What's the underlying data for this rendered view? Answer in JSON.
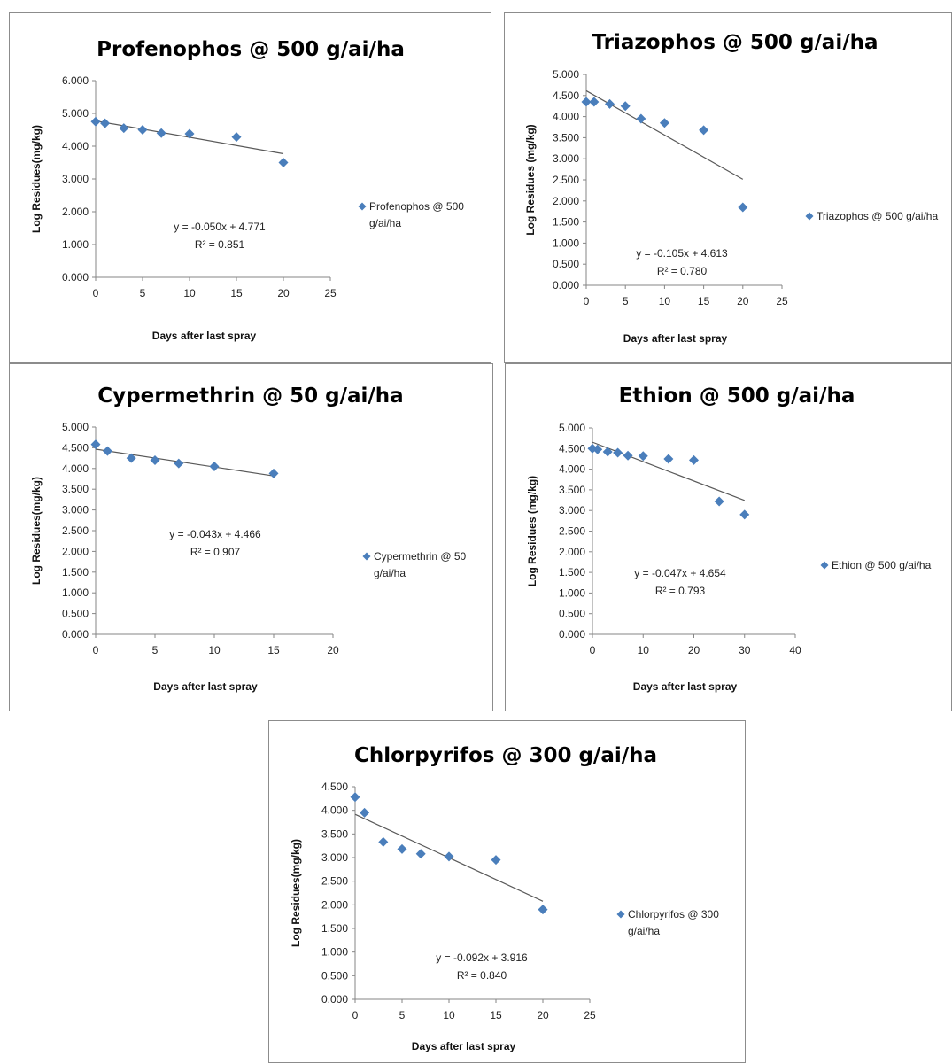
{
  "colors": {
    "marker": "#4a7ebb",
    "trend": "#595959",
    "axis": "#868686",
    "border": "#8c8c8c"
  },
  "chart_data": [
    {
      "type": "scatter",
      "title": "Profenophos @ 500 g/ai/ha",
      "xlabel": "Days after last spray",
      "ylabel": "Log Residues(mg/kg)",
      "xlim": [
        0,
        25
      ],
      "xticks": [
        "0",
        "5",
        "10",
        "15",
        "20",
        "25"
      ],
      "ylim": [
        0,
        6
      ],
      "yticks": [
        "0.000",
        "1.000",
        "2.000",
        "3.000",
        "4.000",
        "5.000",
        "6.000"
      ],
      "series": [
        {
          "name": "Profenophos @ 500 g/ai/ha",
          "legend_lines": [
            "Profenophos @ 500",
            "g/ai/ha"
          ],
          "x": [
            0,
            1,
            3,
            5,
            7,
            10,
            15,
            20
          ],
          "y": [
            4.75,
            4.7,
            4.55,
            4.5,
            4.4,
            4.38,
            4.28,
            3.5
          ]
        }
      ],
      "trendline": {
        "slope": -0.05,
        "intercept": 4.771,
        "x_range": [
          0,
          20
        ]
      },
      "equation": "y = -0.050x + 4.771",
      "r2": "R² = 0.851",
      "grid": false,
      "legend_position": "right"
    },
    {
      "type": "scatter",
      "title": "Triazophos @ 500 g/ai/ha",
      "xlabel": "Days after last spray",
      "ylabel": "Log Residues (mg/kg)",
      "xlim": [
        0,
        25
      ],
      "xticks": [
        "0",
        "5",
        "10",
        "15",
        "20",
        "25"
      ],
      "ylim": [
        0,
        5
      ],
      "yticks": [
        "0.000",
        "0.500",
        "1.000",
        "1.500",
        "2.000",
        "2.500",
        "3.000",
        "3.500",
        "4.000",
        "4.500",
        "5.000"
      ],
      "series": [
        {
          "name": "Triazophos @ 500 g/ai/ha",
          "legend_lines": [
            "Triazophos @ 500 g/ai/ha"
          ],
          "x": [
            0,
            1,
            3,
            5,
            7,
            10,
            15,
            20
          ],
          "y": [
            4.35,
            4.35,
            4.3,
            4.25,
            3.95,
            3.85,
            3.68,
            1.85
          ]
        }
      ],
      "trendline": {
        "slope": -0.105,
        "intercept": 4.613,
        "x_range": [
          0,
          20
        ]
      },
      "equation": "y = -0.105x + 4.613",
      "r2": "R² = 0.780",
      "grid": false,
      "legend_position": "right"
    },
    {
      "type": "scatter",
      "title": "Cypermethrin @ 50 g/ai/ha",
      "xlabel": "Days after last spray",
      "ylabel": "Log Residues(mg/kg)",
      "xlim": [
        0,
        20
      ],
      "xticks": [
        "0",
        "5",
        "10",
        "15",
        "20"
      ],
      "ylim": [
        0,
        5
      ],
      "yticks": [
        "0.000",
        "0.500",
        "1.000",
        "1.500",
        "2.000",
        "2.500",
        "3.000",
        "3.500",
        "4.000",
        "4.500",
        "5.000"
      ],
      "series": [
        {
          "name": "Cypermethrin @ 50 g/ai/ha",
          "legend_lines": [
            "Cypermethrin @ 50",
            "g/ai/ha"
          ],
          "x": [
            0,
            1,
            3,
            5,
            7,
            10,
            15
          ],
          "y": [
            4.58,
            4.42,
            4.25,
            4.2,
            4.12,
            4.05,
            3.88
          ]
        }
      ],
      "trendline": {
        "slope": -0.043,
        "intercept": 4.466,
        "x_range": [
          0,
          15
        ]
      },
      "equation": "y = -0.043x + 4.466",
      "r2": "R² = 0.907",
      "grid": false,
      "legend_position": "right"
    },
    {
      "type": "scatter",
      "title": "Ethion @ 500 g/ai/ha",
      "xlabel": "Days after last spray",
      "ylabel": "Log Residues  (mg/kg)",
      "xlim": [
        0,
        40
      ],
      "xticks": [
        "0",
        "10",
        "20",
        "30",
        "40"
      ],
      "ylim": [
        0,
        5
      ],
      "yticks": [
        "0.000",
        "0.500",
        "1.000",
        "1.500",
        "2.000",
        "2.500",
        "3.000",
        "3.500",
        "4.000",
        "4.500",
        "5.000"
      ],
      "series": [
        {
          "name": "Ethion @ 500 g/ai/ha",
          "legend_lines": [
            "Ethion @ 500 g/ai/ha"
          ],
          "x": [
            0,
            1,
            3,
            5,
            7,
            10,
            15,
            20,
            25,
            30
          ],
          "y": [
            4.5,
            4.48,
            4.42,
            4.4,
            4.33,
            4.32,
            4.25,
            4.22,
            3.22,
            2.9
          ]
        }
      ],
      "trendline": {
        "slope": -0.047,
        "intercept": 4.654,
        "x_range": [
          0,
          30
        ]
      },
      "equation": "y = -0.047x + 4.654",
      "r2": "R² = 0.793",
      "grid": false,
      "legend_position": "right"
    },
    {
      "type": "scatter",
      "title": "Chlorpyrifos @ 300 g/ai/ha",
      "xlabel": "Days after last spray",
      "ylabel": "Log Residues(mg/kg)",
      "xlim": [
        0,
        25
      ],
      "xticks": [
        "0",
        "5",
        "10",
        "15",
        "20",
        "25"
      ],
      "ylim": [
        0,
        4.5
      ],
      "yticks": [
        "0.000",
        "0.500",
        "1.000",
        "1.500",
        "2.000",
        "2.500",
        "3.000",
        "3.500",
        "4.000",
        "4.500"
      ],
      "series": [
        {
          "name": "Chlorpyrifos @ 300 g/ai/ha",
          "legend_lines": [
            "Chlorpyrifos @ 300",
            "g/ai/ha"
          ],
          "x": [
            0,
            1,
            3,
            5,
            7,
            10,
            15,
            20
          ],
          "y": [
            4.28,
            3.95,
            3.33,
            3.18,
            3.08,
            3.02,
            2.95,
            1.9
          ]
        }
      ],
      "trendline": {
        "slope": -0.092,
        "intercept": 3.916,
        "x_range": [
          0,
          20
        ]
      },
      "equation": "y = -0.092x + 3.916",
      "r2": "R² = 0.840",
      "grid": false,
      "legend_position": "right"
    }
  ]
}
